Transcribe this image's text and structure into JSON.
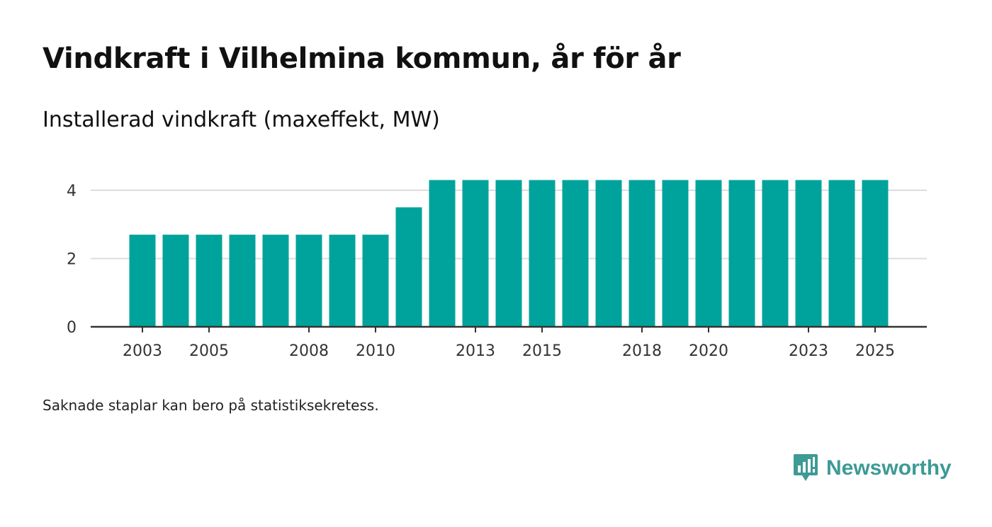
{
  "title": "Vindkraft i Vilhelmina kommun, år för år",
  "subtitle": "Installerad vindkraft (maxeffekt, MW)",
  "footnote": "Saknade staplar kan bero på statistiksekretess.",
  "brand": {
    "name": "Newsworthy",
    "logo_icon": "newsworthy-logo-icon",
    "color": "#3d9a95"
  },
  "colors": {
    "bar": "#00a39b",
    "grid": "#dddddd",
    "axis": "#333333"
  },
  "chart_data": {
    "type": "bar",
    "title": "Vindkraft i Vilhelmina kommun, år för år",
    "ylabel": "Installerad vindkraft (maxeffekt, MW)",
    "xlabel": "",
    "categories": [
      2003,
      2004,
      2005,
      2006,
      2007,
      2008,
      2009,
      2010,
      2011,
      2012,
      2013,
      2014,
      2015,
      2016,
      2017,
      2018,
      2019,
      2020,
      2021,
      2022,
      2023,
      2024,
      2025
    ],
    "values": [
      2.7,
      2.7,
      2.7,
      2.7,
      2.7,
      2.7,
      2.7,
      2.7,
      3.5,
      4.3,
      4.3,
      4.3,
      4.3,
      4.3,
      4.3,
      4.3,
      4.3,
      4.3,
      4.3,
      4.3,
      4.3,
      4.3,
      4.3
    ],
    "x_tick_labels": [
      "2003",
      "2005",
      "2008",
      "2010",
      "2013",
      "2015",
      "2018",
      "2020",
      "2023",
      "2025"
    ],
    "y_ticks": [
      0,
      2,
      4
    ],
    "ylim": [
      0,
      4.8
    ],
    "grid": true
  }
}
